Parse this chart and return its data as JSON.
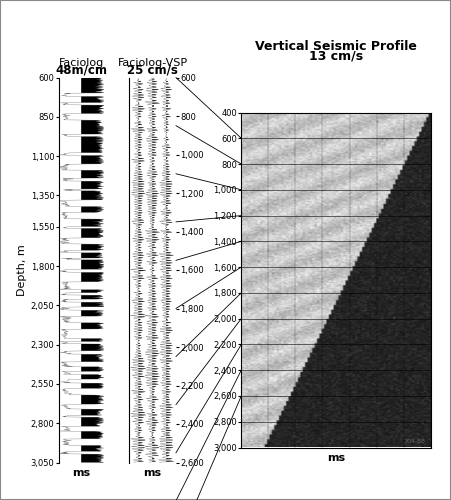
{
  "bg_color": "#ffffff",
  "fig_border_color": "#999999",
  "left_panel_title1": "Faciolog",
  "left_panel_title2": "48m/cm",
  "mid_panel_title1": "Faciolog-VSP",
  "mid_panel_title2": "25 cm/s",
  "vsp_title1": "Vertical Seismic Profile",
  "vsp_title2": "13 cm/s",
  "left_yticks": [
    600,
    850,
    1100,
    1350,
    1550,
    1800,
    2050,
    2300,
    2550,
    2800,
    3050
  ],
  "mid_yticks": [
    600,
    800,
    1000,
    1200,
    1400,
    1600,
    1800,
    2000,
    2200,
    2400,
    2600
  ],
  "vsp_yticks": [
    400,
    600,
    800,
    1000,
    1200,
    1400,
    1600,
    1800,
    2000,
    2200,
    2400,
    2600,
    2800,
    3000
  ],
  "xlabel": "ms",
  "ylabel": "Depth, m",
  "watermark": "704-88",
  "connector_left_depths": [
    600,
    850,
    1100,
    1350,
    1550,
    1800,
    2050,
    2300,
    2550,
    2800,
    3050
  ],
  "connector_right_depths": [
    600,
    800,
    1000,
    1200,
    1400,
    1600,
    1800,
    2000,
    2200,
    2400,
    2600
  ]
}
